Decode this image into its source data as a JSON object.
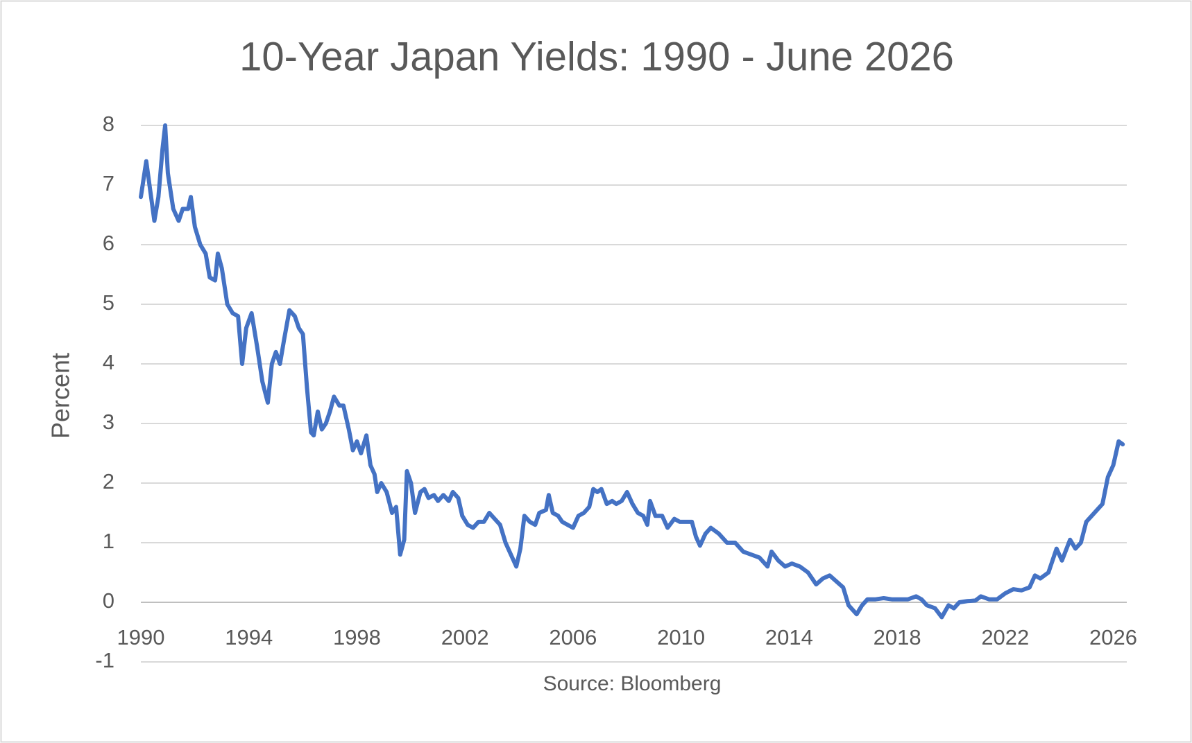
{
  "chart_data": {
    "type": "line",
    "title": "10-Year Japan Yields: 1990 - June 2026",
    "y_label": "Percent",
    "source": "Source: Bloomberg",
    "color": "#4472c4",
    "grid": true,
    "xlim": [
      1990,
      2026.5
    ],
    "xticks": [
      1990,
      1994,
      1998,
      2002,
      2006,
      2010,
      2014,
      2018,
      2022,
      2026
    ],
    "ylim": [
      -1,
      8
    ],
    "yticks": [
      -1,
      0,
      1,
      2,
      3,
      4,
      5,
      6,
      7,
      8
    ],
    "x": [
      1990.0,
      1990.1,
      1990.2,
      1990.35,
      1990.5,
      1990.65,
      1990.8,
      1990.9,
      1991.0,
      1991.2,
      1991.4,
      1991.55,
      1991.75,
      1991.85,
      1992.0,
      1992.2,
      1992.4,
      1992.55,
      1992.75,
      1992.85,
      1993.0,
      1993.2,
      1993.4,
      1993.6,
      1993.75,
      1993.9,
      1994.1,
      1994.3,
      1994.5,
      1994.7,
      1994.85,
      1995.0,
      1995.15,
      1995.3,
      1995.5,
      1995.7,
      1995.85,
      1996.0,
      1996.15,
      1996.3,
      1996.4,
      1996.55,
      1996.7,
      1996.85,
      1997.0,
      1997.15,
      1997.35,
      1997.5,
      1997.7,
      1997.85,
      1998.0,
      1998.15,
      1998.35,
      1998.5,
      1998.65,
      1998.75,
      1998.9,
      1999.1,
      1999.3,
      1999.45,
      1999.6,
      1999.75,
      1999.85,
      2000.0,
      2000.15,
      2000.35,
      2000.5,
      2000.65,
      2000.85,
      2001.0,
      2001.2,
      2001.4,
      2001.55,
      2001.75,
      2001.9,
      2002.1,
      2002.3,
      2002.5,
      2002.7,
      2002.9,
      2003.1,
      2003.3,
      2003.5,
      2003.7,
      2003.9,
      2004.05,
      2004.2,
      2004.4,
      2004.6,
      2004.75,
      2005.0,
      2005.1,
      2005.25,
      2005.45,
      2005.6,
      2005.8,
      2006.0,
      2006.2,
      2006.4,
      2006.6,
      2006.75,
      2006.9,
      2007.05,
      2007.25,
      2007.45,
      2007.6,
      2007.8,
      2008.0,
      2008.2,
      2008.4,
      2008.6,
      2008.75,
      2008.85,
      2009.05,
      2009.3,
      2009.5,
      2009.75,
      2009.95,
      2010.15,
      2010.4,
      2010.55,
      2010.7,
      2010.9,
      2011.1,
      2011.4,
      2011.7,
      2012.0,
      2012.3,
      2012.6,
      2012.9,
      2013.2,
      2013.35,
      2013.6,
      2013.85,
      2014.1,
      2014.4,
      2014.7,
      2015.0,
      2015.25,
      2015.5,
      2015.75,
      2016.0,
      2016.2,
      2016.5,
      2016.7,
      2016.9,
      2017.2,
      2017.5,
      2017.8,
      2018.1,
      2018.4,
      2018.7,
      2018.9,
      2019.1,
      2019.4,
      2019.65,
      2019.9,
      2020.1,
      2020.3,
      2020.6,
      2020.9,
      2021.1,
      2021.4,
      2021.7,
      2022.0,
      2022.3,
      2022.6,
      2022.9,
      2023.1,
      2023.3,
      2023.6,
      2023.9,
      2024.1,
      2024.4,
      2024.6,
      2024.8,
      2025.0,
      2025.2,
      2025.4,
      2025.6,
      2025.8,
      2026.0,
      2026.2,
      2026.35
    ],
    "values": [
      6.8,
      7.1,
      7.4,
      6.9,
      6.4,
      6.8,
      7.6,
      8.0,
      7.2,
      6.6,
      6.4,
      6.6,
      6.6,
      6.8,
      6.3,
      6.0,
      5.85,
      5.45,
      5.4,
      5.85,
      5.6,
      5.0,
      4.85,
      4.8,
      4.0,
      4.6,
      4.85,
      4.3,
      3.7,
      3.35,
      4.0,
      4.2,
      4.0,
      4.4,
      4.9,
      4.8,
      4.6,
      4.5,
      3.6,
      2.85,
      2.8,
      3.2,
      2.9,
      3.0,
      3.2,
      3.45,
      3.3,
      3.3,
      2.9,
      2.55,
      2.7,
      2.5,
      2.8,
      2.3,
      2.15,
      1.85,
      2.0,
      1.85,
      1.5,
      1.6,
      0.8,
      1.05,
      2.2,
      2.0,
      1.5,
      1.85,
      1.9,
      1.75,
      1.8,
      1.7,
      1.8,
      1.7,
      1.85,
      1.75,
      1.45,
      1.3,
      1.25,
      1.35,
      1.35,
      1.5,
      1.4,
      1.3,
      1.0,
      0.8,
      0.6,
      0.9,
      1.45,
      1.35,
      1.3,
      1.5,
      1.55,
      1.8,
      1.5,
      1.45,
      1.35,
      1.3,
      1.25,
      1.45,
      1.5,
      1.6,
      1.9,
      1.85,
      1.9,
      1.65,
      1.7,
      1.65,
      1.7,
      1.85,
      1.65,
      1.5,
      1.45,
      1.3,
      1.7,
      1.45,
      1.45,
      1.25,
      1.4,
      1.35,
      1.35,
      1.35,
      1.1,
      0.95,
      1.15,
      1.25,
      1.15,
      1.0,
      1.0,
      0.85,
      0.8,
      0.75,
      0.6,
      0.85,
      0.7,
      0.6,
      0.65,
      0.6,
      0.5,
      0.3,
      0.4,
      0.45,
      0.35,
      0.25,
      -0.05,
      -0.2,
      -0.05,
      0.05,
      0.05,
      0.07,
      0.05,
      0.05,
      0.05,
      0.1,
      0.05,
      -0.05,
      -0.1,
      -0.25,
      -0.05,
      -0.1,
      0.0,
      0.02,
      0.03,
      0.1,
      0.05,
      0.05,
      0.15,
      0.22,
      0.2,
      0.25,
      0.45,
      0.4,
      0.5,
      0.9,
      0.7,
      1.05,
      0.9,
      1.0,
      1.35,
      1.45,
      1.55,
      1.65,
      2.1,
      2.3,
      2.7,
      2.65
    ]
  }
}
